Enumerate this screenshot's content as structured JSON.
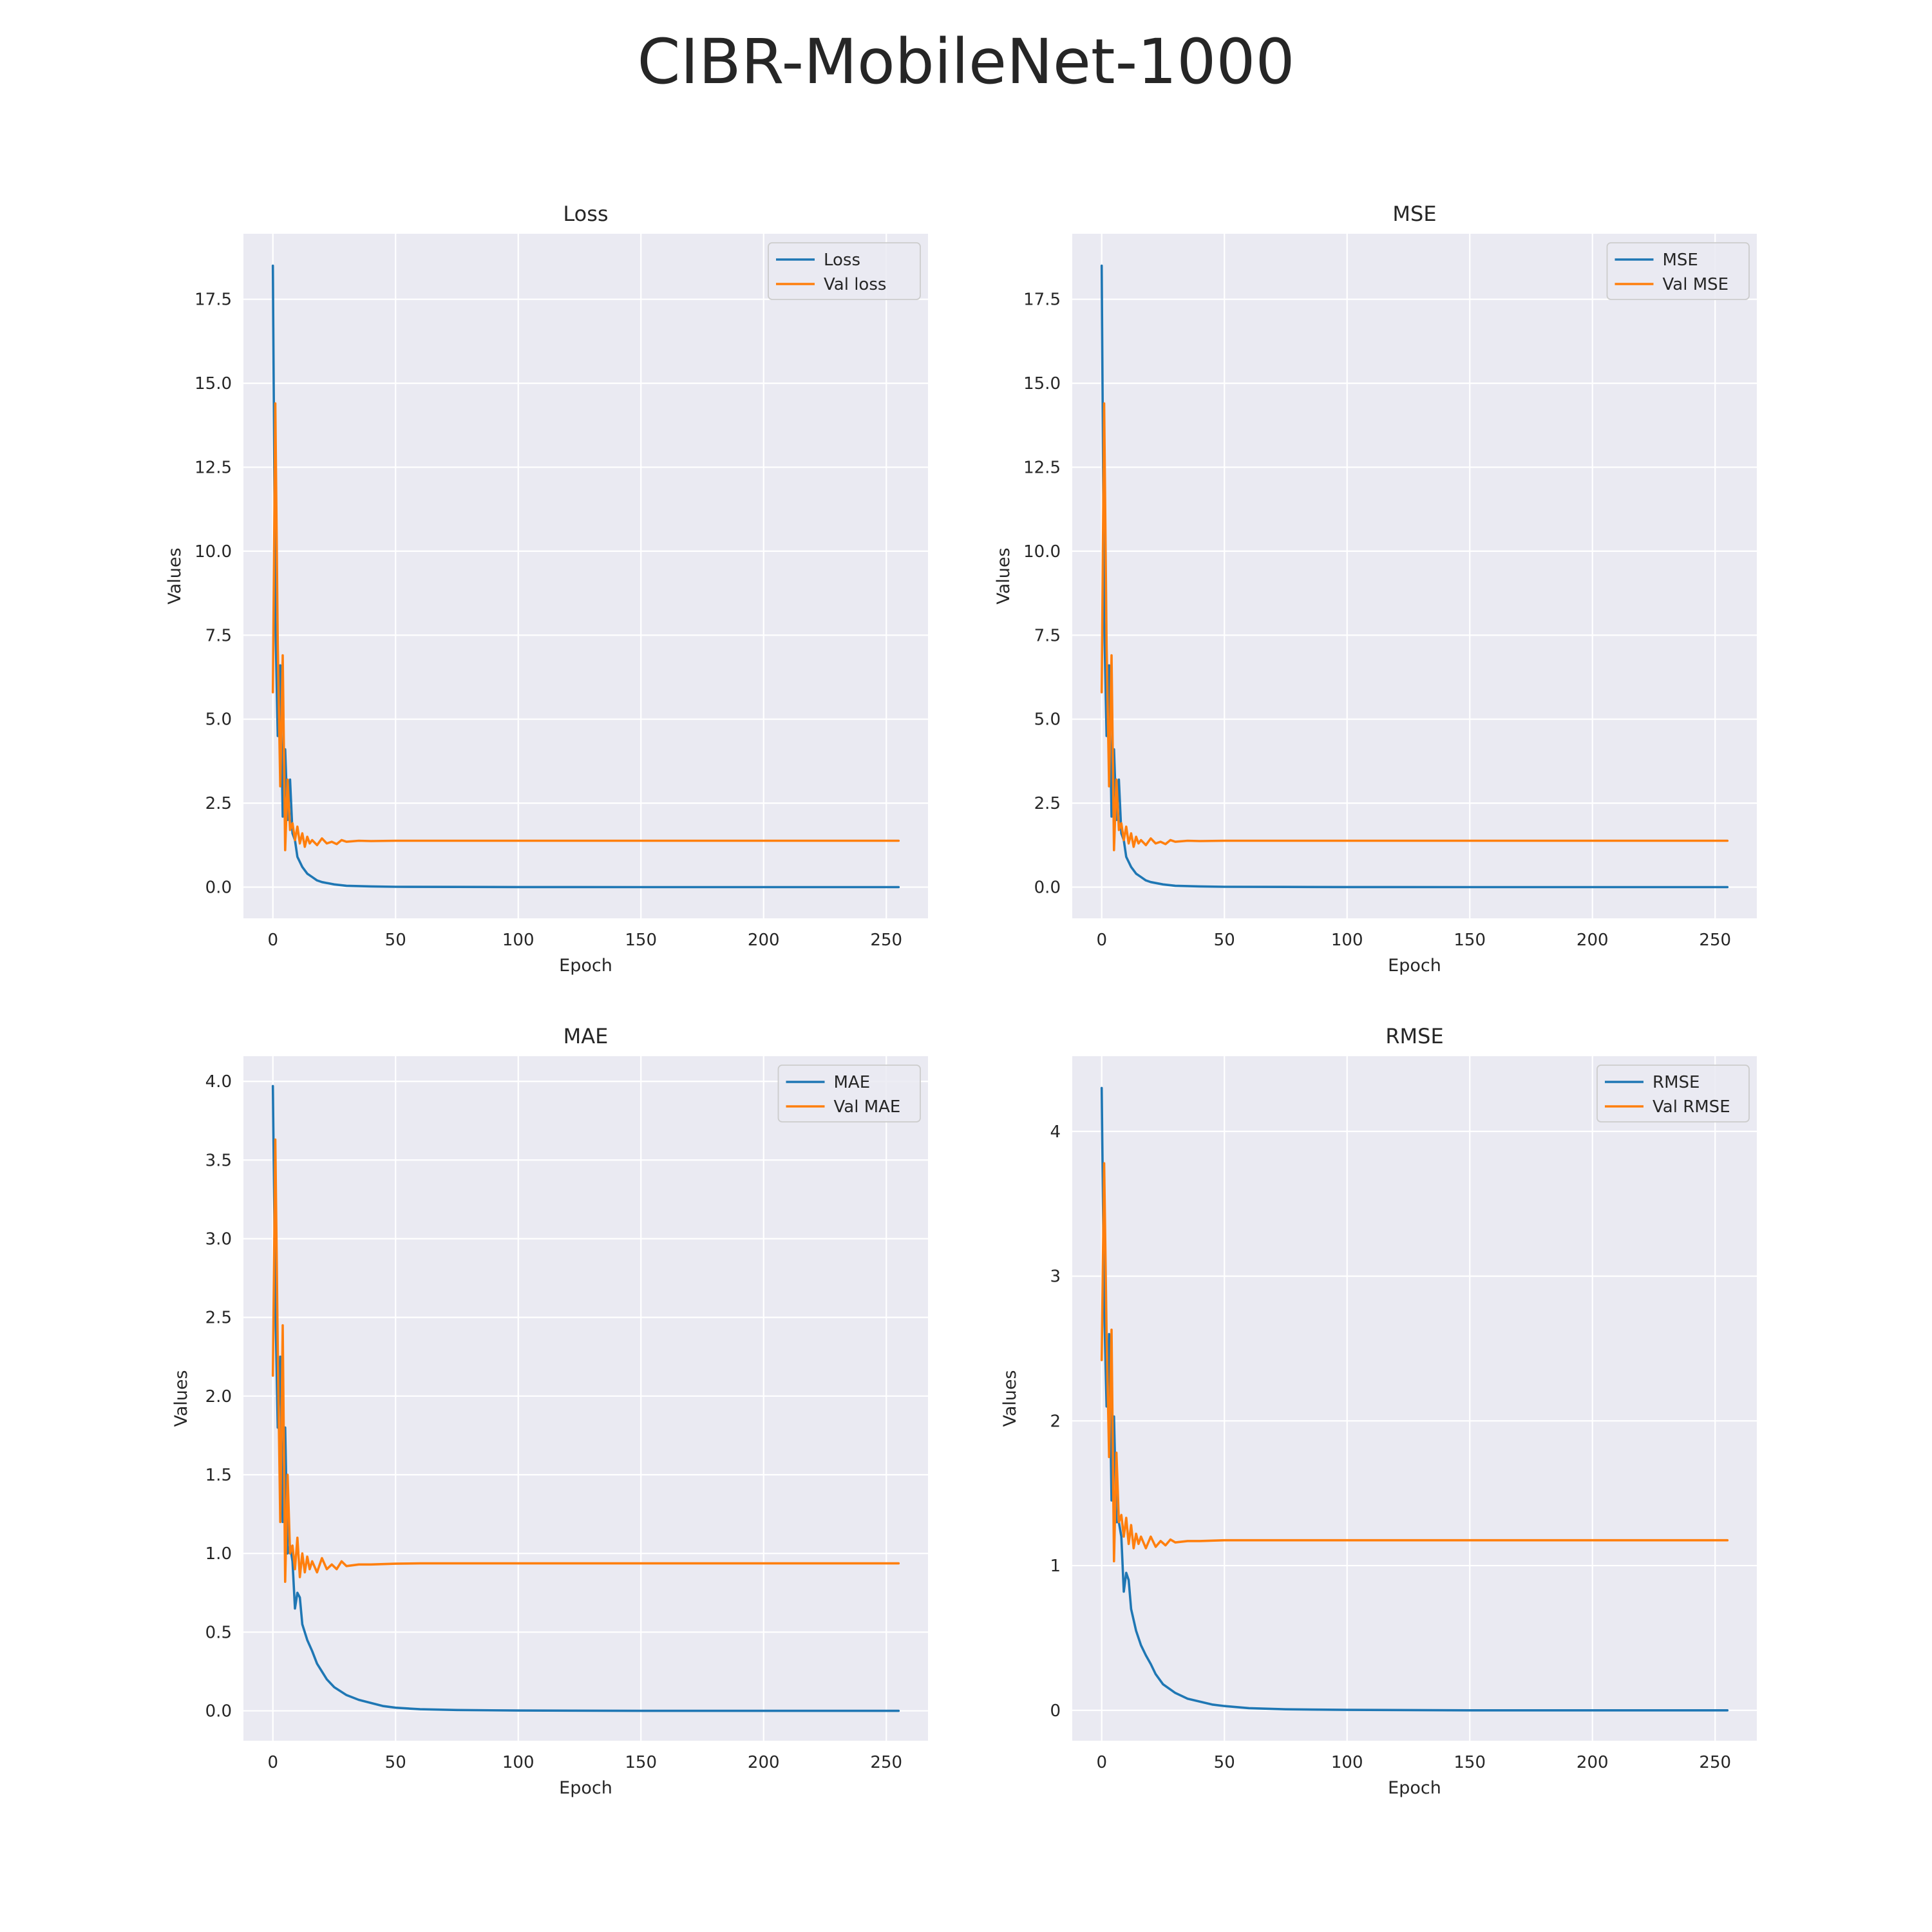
{
  "figure_title": "CIBR-MobileNet-1000",
  "colors": {
    "train": "#1f77b4",
    "val": "#ff7f0e"
  },
  "chart_data": [
    {
      "type": "line",
      "title": "Loss",
      "xlabel": "Epoch",
      "ylabel": "Values",
      "xlim": [
        -12,
        267
      ],
      "ylim": [
        -0.93,
        19.45
      ],
      "xticks": [
        0,
        50,
        100,
        150,
        200,
        250
      ],
      "yticks": [
        0.0,
        2.5,
        5.0,
        7.5,
        10.0,
        12.5,
        15.0,
        17.5
      ],
      "ytick_labels": [
        "0.0",
        "2.5",
        "5.0",
        "7.5",
        "10.0",
        "12.5",
        "15.0",
        "17.5"
      ],
      "grid": true,
      "legend_position": "upper right",
      "series": [
        {
          "name": "Loss",
          "x": [
            0,
            1,
            2,
            3,
            4,
            5,
            6,
            7,
            8,
            9,
            10,
            12,
            14,
            16,
            18,
            20,
            25,
            30,
            40,
            50,
            75,
            100,
            150,
            200,
            255
          ],
          "values": [
            18.5,
            8.0,
            4.5,
            6.6,
            2.1,
            4.1,
            2.0,
            3.2,
            1.6,
            1.4,
            0.9,
            0.6,
            0.4,
            0.3,
            0.2,
            0.15,
            0.08,
            0.04,
            0.02,
            0.01,
            0.005,
            0.002,
            0.0,
            0.0,
            0.0
          ]
        },
        {
          "name": "Val loss",
          "x": [
            0,
            1,
            2,
            3,
            4,
            5,
            6,
            7,
            8,
            9,
            10,
            11,
            12,
            13,
            14,
            15,
            16,
            18,
            20,
            22,
            24,
            26,
            28,
            30,
            35,
            40,
            50,
            100,
            150,
            200,
            255
          ],
          "values": [
            5.8,
            14.4,
            7.2,
            3.0,
            6.9,
            1.1,
            3.2,
            1.7,
            1.9,
            1.4,
            1.8,
            1.3,
            1.6,
            1.2,
            1.5,
            1.3,
            1.4,
            1.25,
            1.45,
            1.3,
            1.35,
            1.28,
            1.4,
            1.35,
            1.38,
            1.37,
            1.38,
            1.38,
            1.38,
            1.38,
            1.38
          ]
        }
      ]
    },
    {
      "type": "line",
      "title": "MSE",
      "xlabel": "Epoch",
      "ylabel": "Values",
      "xlim": [
        -12,
        267
      ],
      "ylim": [
        -0.93,
        19.45
      ],
      "xticks": [
        0,
        50,
        100,
        150,
        200,
        250
      ],
      "yticks": [
        0.0,
        2.5,
        5.0,
        7.5,
        10.0,
        12.5,
        15.0,
        17.5
      ],
      "ytick_labels": [
        "0.0",
        "2.5",
        "5.0",
        "7.5",
        "10.0",
        "12.5",
        "15.0",
        "17.5"
      ],
      "grid": true,
      "legend_position": "upper right",
      "series": [
        {
          "name": "MSE",
          "x": [
            0,
            1,
            2,
            3,
            4,
            5,
            6,
            7,
            8,
            9,
            10,
            12,
            14,
            16,
            18,
            20,
            25,
            30,
            40,
            50,
            75,
            100,
            150,
            200,
            255
          ],
          "values": [
            18.5,
            8.0,
            4.5,
            6.6,
            2.1,
            4.1,
            2.0,
            3.2,
            1.6,
            1.4,
            0.9,
            0.6,
            0.4,
            0.3,
            0.2,
            0.15,
            0.08,
            0.04,
            0.02,
            0.01,
            0.005,
            0.002,
            0.0,
            0.0,
            0.0
          ]
        },
        {
          "name": "Val MSE",
          "x": [
            0,
            1,
            2,
            3,
            4,
            5,
            6,
            7,
            8,
            9,
            10,
            11,
            12,
            13,
            14,
            15,
            16,
            18,
            20,
            22,
            24,
            26,
            28,
            30,
            35,
            40,
            50,
            100,
            150,
            200,
            255
          ],
          "values": [
            5.8,
            14.4,
            7.2,
            3.0,
            6.9,
            1.1,
            3.2,
            1.7,
            1.9,
            1.4,
            1.8,
            1.3,
            1.6,
            1.2,
            1.5,
            1.3,
            1.4,
            1.25,
            1.45,
            1.3,
            1.35,
            1.28,
            1.4,
            1.35,
            1.38,
            1.37,
            1.38,
            1.38,
            1.38,
            1.38,
            1.38
          ]
        }
      ]
    },
    {
      "type": "line",
      "title": "MAE",
      "xlabel": "Epoch",
      "ylabel": "Values",
      "xlim": [
        -12,
        267
      ],
      "ylim": [
        -0.19,
        4.16
      ],
      "xticks": [
        0,
        50,
        100,
        150,
        200,
        250
      ],
      "yticks": [
        0.0,
        0.5,
        1.0,
        1.5,
        2.0,
        2.5,
        3.0,
        3.5,
        4.0
      ],
      "ytick_labels": [
        "0.0",
        "0.5",
        "1.0",
        "1.5",
        "2.0",
        "2.5",
        "3.0",
        "3.5",
        "4.0"
      ],
      "grid": true,
      "legend_position": "upper right",
      "series": [
        {
          "name": "MAE",
          "x": [
            0,
            1,
            2,
            3,
            4,
            5,
            6,
            7,
            8,
            9,
            10,
            11,
            12,
            14,
            16,
            18,
            20,
            22,
            25,
            30,
            35,
            40,
            45,
            50,
            60,
            75,
            100,
            150,
            200,
            255
          ],
          "values": [
            3.97,
            2.6,
            1.8,
            2.25,
            1.2,
            1.8,
            1.0,
            1.05,
            0.95,
            0.65,
            0.75,
            0.72,
            0.55,
            0.45,
            0.38,
            0.3,
            0.25,
            0.2,
            0.15,
            0.1,
            0.07,
            0.05,
            0.03,
            0.02,
            0.01,
            0.005,
            0.002,
            0.0,
            0.0,
            0.0
          ]
        },
        {
          "name": "Val MAE",
          "x": [
            0,
            1,
            2,
            3,
            4,
            5,
            6,
            7,
            8,
            9,
            10,
            11,
            12,
            13,
            14,
            15,
            16,
            18,
            20,
            22,
            24,
            26,
            28,
            30,
            35,
            40,
            50,
            60,
            100,
            150,
            200,
            255
          ],
          "values": [
            2.13,
            3.63,
            2.3,
            1.2,
            2.45,
            0.82,
            1.5,
            1.0,
            1.05,
            0.9,
            1.1,
            0.85,
            1.0,
            0.88,
            0.98,
            0.9,
            0.95,
            0.88,
            0.97,
            0.9,
            0.93,
            0.9,
            0.95,
            0.92,
            0.93,
            0.93,
            0.935,
            0.937,
            0.937,
            0.937,
            0.937,
            0.937
          ]
        }
      ]
    },
    {
      "type": "line",
      "title": "RMSE",
      "xlabel": "Epoch",
      "ylabel": "Values",
      "xlim": [
        -12,
        267
      ],
      "ylim": [
        -0.21,
        4.52
      ],
      "xticks": [
        0,
        50,
        100,
        150,
        200,
        250
      ],
      "yticks": [
        0,
        1,
        2,
        3,
        4
      ],
      "ytick_labels": [
        "0",
        "1",
        "2",
        "3",
        "4"
      ],
      "grid": true,
      "legend_position": "upper right",
      "series": [
        {
          "name": "RMSE",
          "x": [
            0,
            1,
            2,
            3,
            4,
            5,
            6,
            7,
            8,
            9,
            10,
            11,
            12,
            14,
            16,
            18,
            20,
            22,
            25,
            30,
            35,
            40,
            45,
            50,
            60,
            75,
            100,
            150,
            200,
            255
          ],
          "values": [
            4.3,
            2.8,
            2.1,
            2.6,
            1.45,
            2.03,
            1.3,
            1.3,
            1.2,
            0.82,
            0.95,
            0.9,
            0.7,
            0.55,
            0.45,
            0.38,
            0.32,
            0.25,
            0.18,
            0.12,
            0.08,
            0.06,
            0.04,
            0.03,
            0.015,
            0.007,
            0.003,
            0.0,
            0.0,
            0.0
          ]
        },
        {
          "name": "Val RMSE",
          "x": [
            0,
            1,
            2,
            3,
            4,
            5,
            6,
            7,
            8,
            9,
            10,
            11,
            12,
            13,
            14,
            15,
            16,
            18,
            20,
            22,
            24,
            26,
            28,
            30,
            35,
            40,
            50,
            60,
            100,
            150,
            200,
            255
          ],
          "values": [
            2.42,
            3.78,
            2.6,
            1.75,
            2.63,
            1.03,
            1.78,
            1.3,
            1.35,
            1.2,
            1.33,
            1.15,
            1.28,
            1.12,
            1.22,
            1.15,
            1.2,
            1.12,
            1.2,
            1.13,
            1.17,
            1.14,
            1.18,
            1.16,
            1.17,
            1.17,
            1.175,
            1.175,
            1.175,
            1.175,
            1.175,
            1.175
          ]
        }
      ]
    }
  ]
}
